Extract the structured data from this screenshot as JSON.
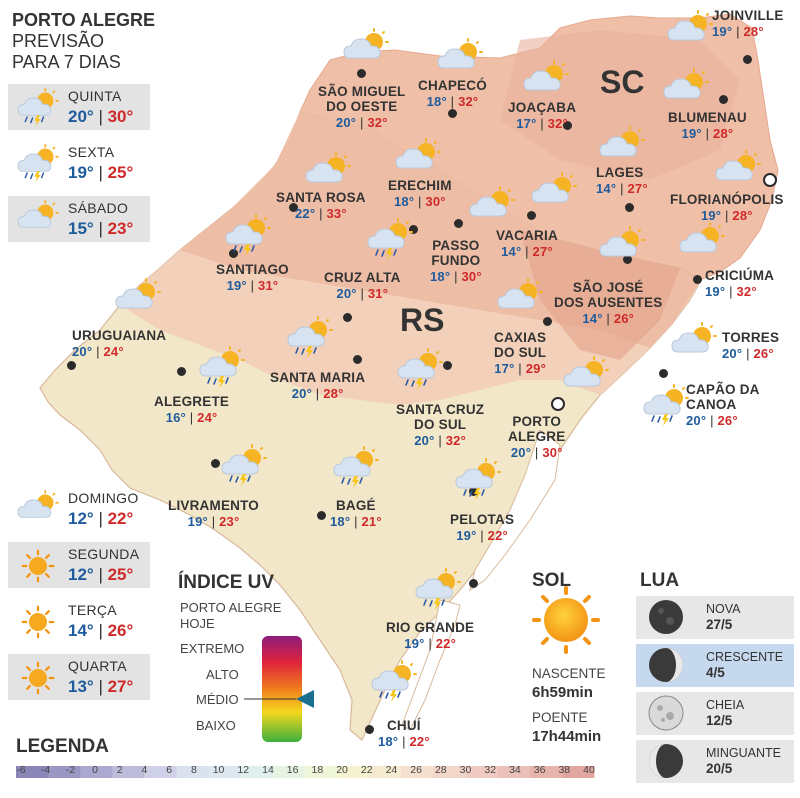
{
  "header": {
    "line1": "PORTO ALEGRE",
    "line2": "PREVISÃO",
    "line3": "PARA 7 DIAS"
  },
  "forecast": [
    {
      "day": "QUINTA",
      "min": "20°",
      "max": "30°",
      "icon": "storm-icon"
    },
    {
      "day": "SEXTA",
      "min": "19°",
      "max": "25°",
      "icon": "storm-icon"
    },
    {
      "day": "SÁBADO",
      "min": "15°",
      "max": "23°",
      "icon": "partly-cloudy-icon"
    },
    {
      "day": "DOMINGO",
      "min": "12°",
      "max": "22°",
      "icon": "partly-cloudy-icon"
    },
    {
      "day": "SEGUNDA",
      "min": "12°",
      "max": "25°",
      "icon": "sun-icon"
    },
    {
      "day": "TERÇA",
      "min": "14°",
      "max": "26°",
      "icon": "sun-icon"
    },
    {
      "day": "QUARTA",
      "min": "13°",
      "max": "27°",
      "icon": "sun-icon"
    }
  ],
  "states": {
    "sc": "SC",
    "rs": "RS"
  },
  "cities": [
    {
      "name": "JOINVILLE",
      "min": "19°",
      "max": "28°"
    },
    {
      "name": "CHAPECÓ",
      "min": "18°",
      "max": "32°"
    },
    {
      "name": "SÃO MIGUEL\nDO OESTE",
      "min": "20°",
      "max": "32°"
    },
    {
      "name": "JOAÇABA",
      "min": "17°",
      "max": "32°"
    },
    {
      "name": "BLUMENAU",
      "min": "19°",
      "max": "28°"
    },
    {
      "name": "LAGES",
      "min": "14°",
      "max": "27°"
    },
    {
      "name": "FLORIANÓPOLIS",
      "min": "19°",
      "max": "28°"
    },
    {
      "name": "ERECHIM",
      "min": "18°",
      "max": "30°"
    },
    {
      "name": "SANTA ROSA",
      "min": "22°",
      "max": "33°"
    },
    {
      "name": "VACARIA",
      "min": "14°",
      "max": "27°"
    },
    {
      "name": "PASSO\nFUNDO",
      "min": "18°",
      "max": "30°"
    },
    {
      "name": "SANTIAGO",
      "min": "19°",
      "max": "31°"
    },
    {
      "name": "CRUZ ALTA",
      "min": "20°",
      "max": "31°"
    },
    {
      "name": "CRICIÚMA",
      "min": "19°",
      "max": "32°"
    },
    {
      "name": "SÃO JOSÉ\nDOS AUSENTES",
      "min": "14°",
      "max": "26°"
    },
    {
      "name": "URUGUAIANA",
      "min": "20°",
      "max": "24°"
    },
    {
      "name": "TORRES",
      "min": "20°",
      "max": "26°"
    },
    {
      "name": "CAXIAS\nDO SUL",
      "min": "17°",
      "max": "29°"
    },
    {
      "name": "SANTA MARIA",
      "min": "20°",
      "max": "28°"
    },
    {
      "name": "ALEGRETE",
      "min": "16°",
      "max": "24°"
    },
    {
      "name": "CAPÃO DA\nCANOA",
      "min": "20°",
      "max": "26°"
    },
    {
      "name": "SANTA CRUZ\nDO SUL",
      "min": "20°",
      "max": "32°"
    },
    {
      "name": "PORTO\nALEGRE",
      "min": "20°",
      "max": "30°"
    },
    {
      "name": "LIVRAMENTO",
      "min": "19°",
      "max": "23°"
    },
    {
      "name": "BAGÉ",
      "min": "18°",
      "max": "21°"
    },
    {
      "name": "PELOTAS",
      "min": "19°",
      "max": "22°"
    },
    {
      "name": "RIO GRANDE",
      "min": "19°",
      "max": "22°"
    },
    {
      "name": "CHUÍ",
      "min": "18°",
      "max": "22°"
    }
  ],
  "uv": {
    "title": "ÍNDICE UV",
    "subtitle1": "PORTO ALEGRE",
    "subtitle2": "HOJE",
    "levels": [
      "EXTREMO",
      "ALTO",
      "MÉDIO",
      "BAIXO"
    ],
    "current": "MÉDIO"
  },
  "sun": {
    "title": "SOL",
    "rise_label": "NASCENTE",
    "rise": "6h59min",
    "set_label": "POENTE",
    "set": "17h44min"
  },
  "moon": {
    "title": "LUA",
    "phases": [
      {
        "name": "NOVA",
        "date": "27/5"
      },
      {
        "name": "CRESCENTE",
        "date": "4/5"
      },
      {
        "name": "CHEIA",
        "date": "12/5"
      },
      {
        "name": "MINGUANTE",
        "date": "20/5"
      }
    ]
  },
  "legend": {
    "title": "LEGENDA",
    "ticks": [
      "-6",
      "-4",
      "-2",
      "0",
      "2",
      "4",
      "6",
      "8",
      "10",
      "12",
      "14",
      "16",
      "18",
      "20",
      "22",
      "24",
      "26",
      "28",
      "30",
      "32",
      "34",
      "36",
      "38",
      "40"
    ],
    "colors": [
      "#8a86b8",
      "#9a97c4",
      "#aba9cf",
      "#bcbcda",
      "#cdd0e6",
      "#d9e0ee",
      "#dce7ef",
      "#dff0ee",
      "#e6f3e3",
      "#eef5d8",
      "#f5f2cf",
      "#f6ead0",
      "#f5e0cf",
      "#f3d6c9",
      "#f0cbc3",
      "#ecc0ba",
      "#e7b3ad",
      "#e1a69f"
    ]
  }
}
